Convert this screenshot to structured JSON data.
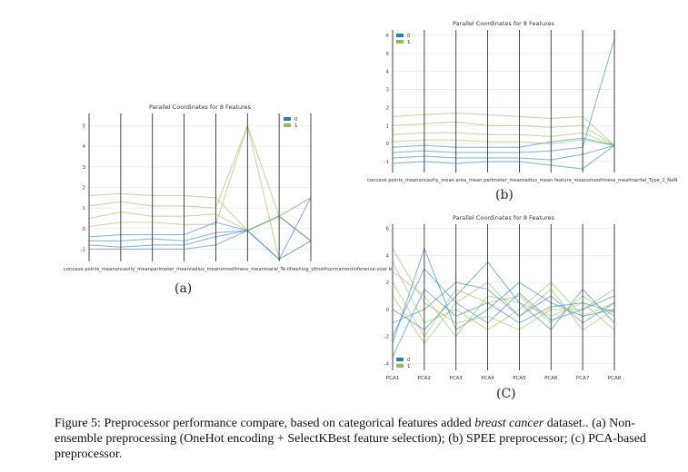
{
  "caption": {
    "prefix": "Figure 5: Preprocessor performance compare, based on categorical features added",
    "dataset": "breast cancer",
    "suffix": "dataset.. (a) Non-ensemble preprocessing (OneHot encoding + SelectKBest feature selection); (b) SPEE preprocessor; (c) PCA-based preprocessor."
  },
  "colors": {
    "class_0": "#2c7fb8",
    "class_1": "#8fbc5a"
  },
  "chart_data": [
    {
      "id": "a",
      "type": "parallel_coordinates",
      "sublabel": "(a)",
      "title": "Parallel Coordinates for 8 Features",
      "axes": [
        "concave points_mean",
        "concavity_mean",
        "perimeter_mean",
        "radius_mean",
        "smoothness_mean",
        "marital_Te-Single",
        "Men_Unmarried",
        "Inference-over"
      ],
      "axis_labels_text": "concave points_meanoncavity_meanperimeter_meanradius_meansmoothness_meanmaral_Te-ilfreshing_ofmethunmarrentinference-over b",
      "yticks": [
        -1,
        0,
        1,
        2,
        3,
        4,
        5
      ],
      "ylim": [
        -1.6,
        5.6
      ],
      "legend": [
        "0",
        "1"
      ],
      "series": [
        {
          "name": "0",
          "values": [
            -1.0,
            -1.0,
            -1.0,
            -1.0,
            -0.8,
            -0.1,
            -1.5,
            -0.6
          ]
        },
        {
          "name": "0",
          "values": [
            -0.8,
            -0.9,
            -0.8,
            -0.8,
            -0.4,
            -0.1,
            0.6,
            -0.6
          ]
        },
        {
          "name": "0",
          "values": [
            -0.6,
            -0.6,
            -0.5,
            -0.6,
            -0.2,
            -0.1,
            -1.5,
            1.5
          ]
        },
        {
          "name": "0",
          "values": [
            -0.4,
            -0.3,
            -0.3,
            -0.3,
            0.3,
            -0.1,
            0.6,
            -0.6
          ]
        },
        {
          "name": "1",
          "values": [
            1.6,
            1.7,
            1.6,
            1.6,
            1.5,
            -0.1,
            0.6,
            1.5
          ]
        },
        {
          "name": "1",
          "values": [
            1.1,
            1.3,
            1.1,
            1.1,
            1.0,
            5.0,
            -1.5,
            -0.6
          ]
        },
        {
          "name": "1",
          "values": [
            0.5,
            0.8,
            0.6,
            0.6,
            0.7,
            -0.1,
            0.6,
            -0.6
          ]
        },
        {
          "name": "1",
          "values": [
            0.1,
            0.3,
            0.3,
            0.2,
            0.2,
            5.0,
            0.6,
            1.5
          ]
        }
      ]
    },
    {
      "id": "b",
      "type": "parallel_coordinates",
      "sublabel": "(b)",
      "title": "Parallel Coordinates for 8 Features",
      "axes": [
        "concave points_mean",
        "concavity_mean",
        "area_mean",
        "perimeter_mean",
        "radius_mean",
        "feature_mean",
        "smoothness_mean",
        "marital_Type_2_NaN"
      ],
      "axis_labels_text": "concave points_meanoncavity_mean area_mean perimeter_meanradius_mean feature_meansmoothness_mealmarital_Type_2_NaN",
      "yticks": [
        -1,
        0,
        1,
        2,
        3,
        4,
        5,
        6
      ],
      "ylim": [
        -1.6,
        6.3
      ],
      "legend": [
        "0",
        "1"
      ],
      "series": [
        {
          "name": "0",
          "values": [
            -1.1,
            -1.0,
            -1.1,
            -1.0,
            -1.0,
            -1.2,
            -1.4,
            -0.1
          ]
        },
        {
          "name": "0",
          "values": [
            -0.8,
            -0.7,
            -0.8,
            -0.8,
            -0.8,
            -0.9,
            -0.6,
            -0.1
          ]
        },
        {
          "name": "0",
          "values": [
            -0.5,
            -0.4,
            -0.5,
            -0.5,
            -0.5,
            -0.4,
            -0.2,
            5.8
          ]
        },
        {
          "name": "0",
          "values": [
            -0.2,
            -0.1,
            -0.2,
            -0.2,
            -0.2,
            0.1,
            0.3,
            -0.1
          ]
        },
        {
          "name": "1",
          "values": [
            1.5,
            1.6,
            1.7,
            1.6,
            1.5,
            1.4,
            1.5,
            -0.1
          ]
        },
        {
          "name": "1",
          "values": [
            1.0,
            1.1,
            1.2,
            1.0,
            1.0,
            0.9,
            1.0,
            -0.1
          ]
        },
        {
          "name": "1",
          "values": [
            0.5,
            0.6,
            0.6,
            0.5,
            0.5,
            0.4,
            0.6,
            -0.1
          ]
        },
        {
          "name": "1",
          "values": [
            0.1,
            0.2,
            0.2,
            0.1,
            0.1,
            0.0,
            0.2,
            -0.1
          ]
        }
      ]
    },
    {
      "id": "c",
      "type": "parallel_coordinates",
      "sublabel": "(C)",
      "title": "Parallel Coordinates for 8 Features",
      "axes": [
        "PCA1",
        "PCA2",
        "PCA3",
        "PCA4",
        "PCA5",
        "PCA6",
        "PCA7",
        "PCA8"
      ],
      "yticks": [
        -4,
        -2,
        0,
        2,
        4,
        6
      ],
      "ylim": [
        -4.5,
        6.3
      ],
      "legend": [
        "0",
        "1"
      ],
      "series": [
        {
          "name": "0",
          "values": [
            -3.5,
            1.5,
            -0.5,
            0.5,
            -1.0,
            0.2,
            0.5,
            -0.2
          ]
        },
        {
          "name": "0",
          "values": [
            -2.0,
            3.0,
            0.5,
            -1.0,
            1.2,
            -0.8,
            0.0,
            1.0
          ]
        },
        {
          "name": "0",
          "values": [
            -1.0,
            0.0,
            2.0,
            1.5,
            -0.5,
            1.0,
            -1.0,
            0.5
          ]
        },
        {
          "name": "0",
          "values": [
            0.0,
            -1.5,
            1.0,
            3.5,
            0.5,
            -1.5,
            1.5,
            -1.0
          ]
        },
        {
          "name": "0",
          "values": [
            -2.5,
            4.5,
            -1.5,
            0.0,
            2.0,
            0.5,
            -0.5,
            0.0
          ]
        },
        {
          "name": "1",
          "values": [
            3.5,
            -1.0,
            0.0,
            -1.5,
            0.0,
            2.0,
            -0.5,
            0.5
          ]
        },
        {
          "name": "1",
          "values": [
            2.0,
            -2.0,
            1.5,
            0.5,
            1.0,
            -1.0,
            1.0,
            -0.5
          ]
        },
        {
          "name": "1",
          "values": [
            4.5,
            0.5,
            -1.0,
            -0.5,
            -1.5,
            0.0,
            0.0,
            1.5
          ]
        },
        {
          "name": "1",
          "values": [
            1.0,
            -2.5,
            0.5,
            2.0,
            -0.5,
            1.5,
            -1.5,
            0.0
          ]
        },
        {
          "name": "1",
          "values": [
            2.8,
            1.0,
            -2.0,
            1.0,
            0.5,
            -0.5,
            0.5,
            -1.5
          ]
        }
      ]
    }
  ]
}
